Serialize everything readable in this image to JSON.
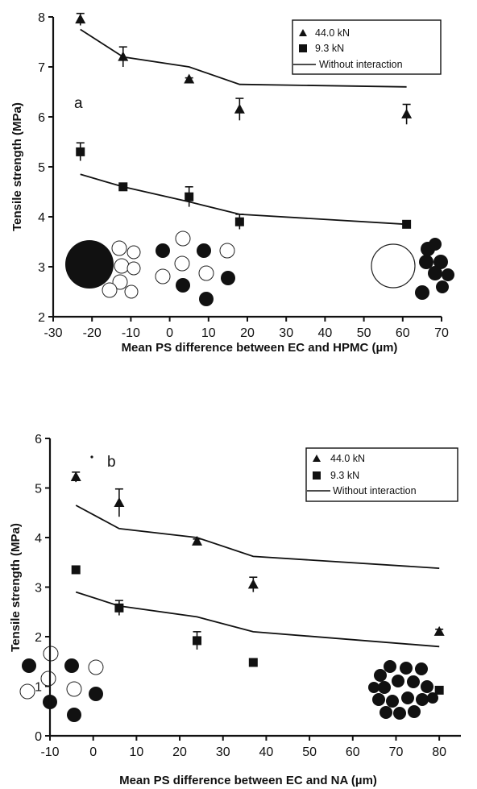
{
  "chart_data": [
    {
      "type": "scatter",
      "panel_label": "a",
      "xlabel": "Mean PS difference between EC and HPMC (µm)",
      "ylabel": "Tensile strength (MPa)",
      "xlim": [
        -30,
        70
      ],
      "ylim": [
        2,
        8
      ],
      "xticks": [
        -30,
        -20,
        -10,
        0,
        10,
        20,
        30,
        40,
        50,
        60,
        70
      ],
      "yticks": [
        2,
        3,
        4,
        5,
        6,
        7,
        8
      ],
      "legend_position": "top-right",
      "legend": [
        "44.0 kN",
        "9.3 kN",
        "Without interaction"
      ],
      "series": [
        {
          "name": "44.0 kN",
          "marker": "triangle",
          "x": [
            -23,
            -12,
            5,
            18,
            61
          ],
          "y": [
            7.95,
            7.2,
            6.75,
            6.15,
            6.05
          ],
          "err": [
            0.12,
            0.2,
            0.03,
            0.22,
            0.2
          ]
        },
        {
          "name": "9.3 kN",
          "marker": "square",
          "x": [
            -23,
            -12,
            5,
            18,
            61
          ],
          "y": [
            5.3,
            4.6,
            4.4,
            3.9,
            3.85
          ],
          "err": [
            0.18,
            0.05,
            0.2,
            0.15,
            0.03
          ]
        }
      ],
      "lines": [
        {
          "name": "Without interaction",
          "x": [
            -23,
            -12,
            5,
            18,
            61
          ],
          "y": [
            7.75,
            7.2,
            7.0,
            6.65,
            6.6
          ]
        },
        {
          "name": "Without interaction",
          "x": [
            -23,
            -12,
            5,
            18,
            61
          ],
          "y": [
            4.85,
            4.6,
            4.3,
            4.05,
            3.85
          ]
        }
      ]
    },
    {
      "type": "scatter",
      "panel_label": "b",
      "xlabel": "Mean PS difference between EC and NA (µm)",
      "ylabel": "Tensile strength (MPa)",
      "xlim": [
        -10,
        85
      ],
      "ylim": [
        0,
        6
      ],
      "xticks": [
        -10,
        0,
        10,
        20,
        30,
        40,
        50,
        60,
        70,
        80
      ],
      "yticks": [
        0,
        1,
        2,
        3,
        4,
        5,
        6
      ],
      "legend_position": "top-right",
      "legend": [
        "44.0 kN",
        "9.3 kN",
        "Without interaction"
      ],
      "series": [
        {
          "name": "44.0 kN",
          "marker": "triangle",
          "x": [
            -4,
            6,
            24,
            37,
            80
          ],
          "y": [
            5.22,
            4.7,
            3.92,
            3.05,
            2.1
          ],
          "err": [
            0.1,
            0.28,
            0.05,
            0.15,
            0.05
          ]
        },
        {
          "name": "9.3 kN",
          "marker": "square",
          "x": [
            -4,
            6,
            24,
            37,
            80
          ],
          "y": [
            3.35,
            2.58,
            1.92,
            1.48,
            0.92
          ],
          "err": [
            0.05,
            0.15,
            0.18,
            0.05,
            0.05
          ]
        }
      ],
      "lines": [
        {
          "name": "Without interaction",
          "x": [
            -4,
            6,
            24,
            37,
            80
          ],
          "y": [
            4.65,
            4.18,
            4.0,
            3.62,
            3.38
          ]
        },
        {
          "name": "Without interaction",
          "x": [
            -4,
            6,
            24,
            37,
            80
          ],
          "y": [
            2.9,
            2.62,
            2.4,
            2.1,
            1.8
          ]
        }
      ]
    }
  ]
}
